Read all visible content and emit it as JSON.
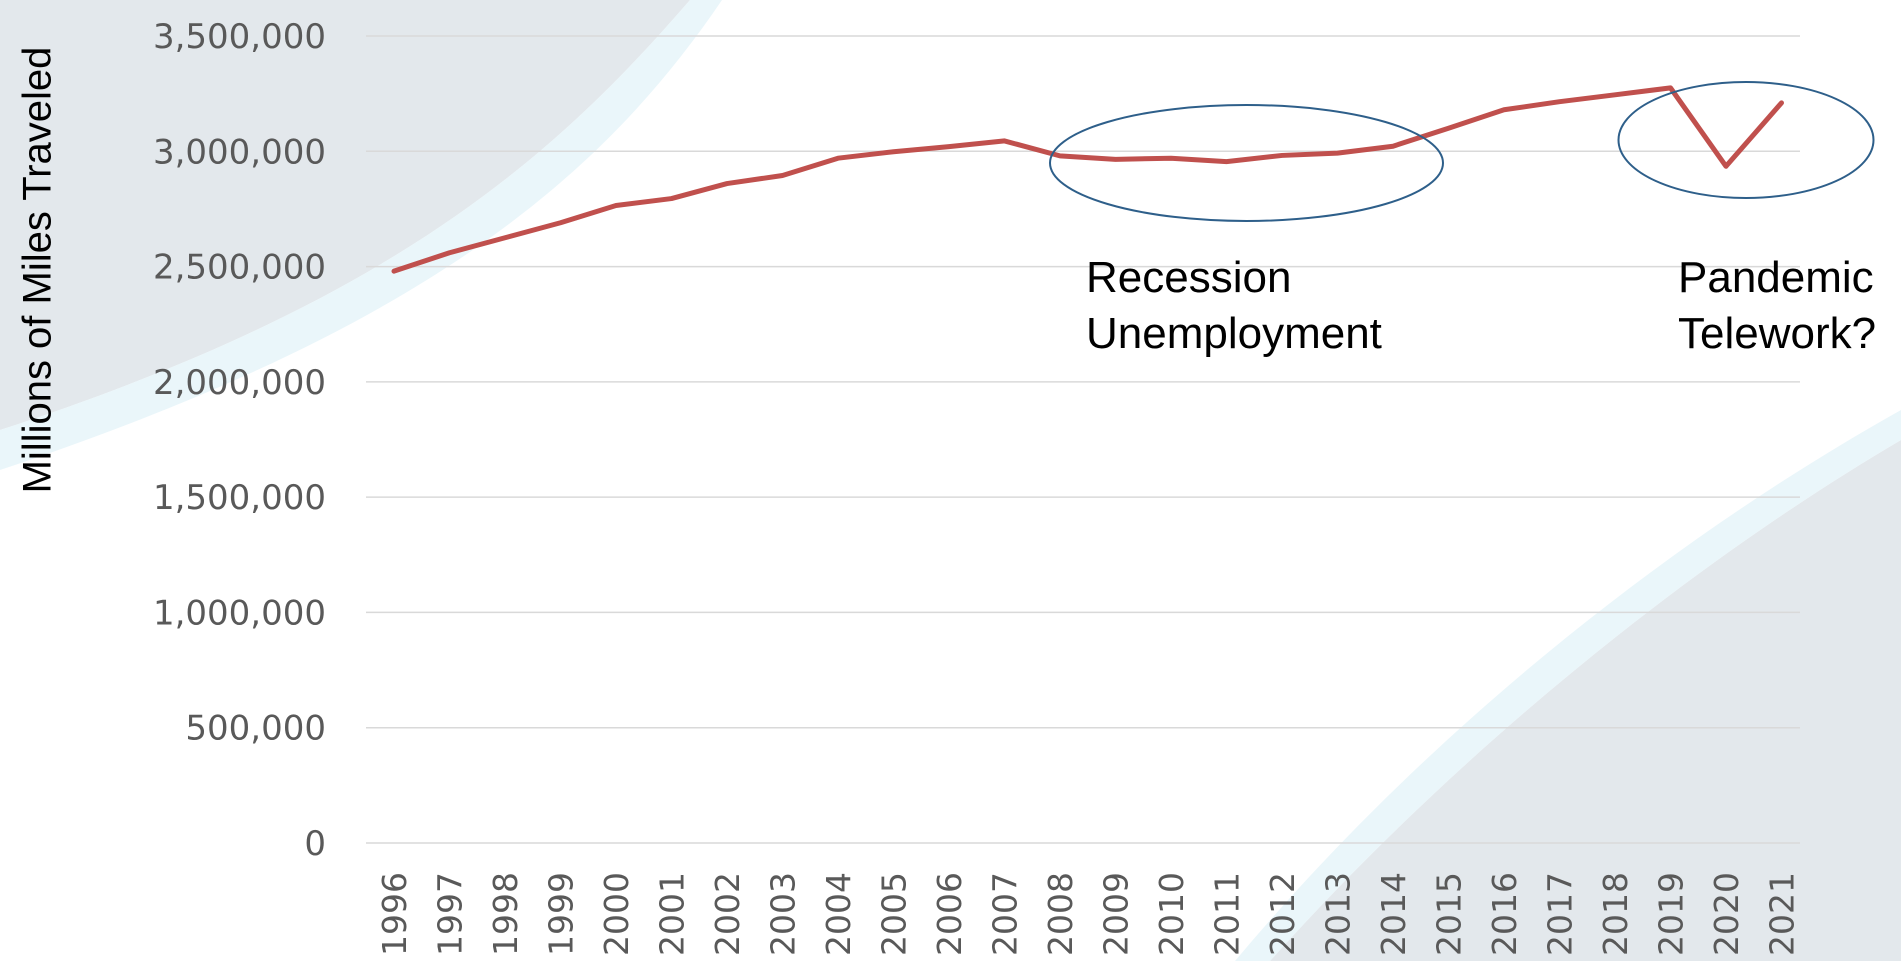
{
  "chart_data": {
    "type": "line",
    "title": "",
    "xlabel": "",
    "ylabel": "Millions of Miles Traveled",
    "ylim": [
      0,
      3500000
    ],
    "yticks": [
      0,
      500000,
      1000000,
      1500000,
      2000000,
      2500000,
      3000000,
      3500000
    ],
    "ytick_labels": [
      "0",
      "500,000",
      "1,000,000",
      "1,500,000",
      "2,000,000",
      "2,500,000",
      "3,000,000",
      "3,500,000"
    ],
    "categories": [
      "1996",
      "1997",
      "1998",
      "1999",
      "2000",
      "2001",
      "2002",
      "2003",
      "2004",
      "2005",
      "2006",
      "2007",
      "2008",
      "2009",
      "2010",
      "2011",
      "2012",
      "2013",
      "2014",
      "2015",
      "2016",
      "2017",
      "2018",
      "2019",
      "2020",
      "2021"
    ],
    "series": [
      {
        "values": [
          2480000,
          2560000,
          2625000,
          2690000,
          2765000,
          2795000,
          2860000,
          2895000,
          2970000,
          2998000,
          3020000,
          3045000,
          2980000,
          2965000,
          2970000,
          2955000,
          2982000,
          2992000,
          3022000,
          3100000,
          3180000,
          3215000,
          3245000,
          3275000,
          2935000,
          3210000
        ],
        "color": "#c0504d"
      }
    ],
    "grid": true,
    "legend": "none",
    "annotations": [
      {
        "lines": [
          "Recession",
          "Unemployment"
        ],
        "from": "2008",
        "to": "2014"
      },
      {
        "lines": [
          "Pandemic",
          "Telework?"
        ],
        "from": "2019",
        "to": "2021"
      }
    ],
    "colors": {
      "line": "#c0504d",
      "ellipse": "#2e5f8a",
      "grid": "#d9d9d9",
      "tick_text": "#595959",
      "bg_swoosh": "#e3e8ec",
      "bg_swoosh_light": "#eaf6fa"
    }
  }
}
